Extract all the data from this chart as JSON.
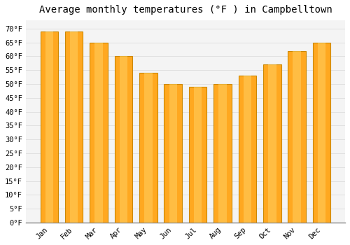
{
  "title": "Average monthly temperatures (°F ) in Campbelltown",
  "months": [
    "Jan",
    "Feb",
    "Mar",
    "Apr",
    "May",
    "Jun",
    "Jul",
    "Aug",
    "Sep",
    "Oct",
    "Nov",
    "Dec"
  ],
  "values": [
    69,
    69,
    65,
    60,
    54,
    50,
    49,
    50,
    53,
    57,
    62,
    65
  ],
  "bar_color": "#FFA820",
  "bar_edge_color": "#CC8800",
  "background_color": "#ffffff",
  "plot_bg_color": "#f4f4f4",
  "grid_color": "#dddddd",
  "ylim": [
    0,
    73
  ],
  "yticks": [
    0,
    5,
    10,
    15,
    20,
    25,
    30,
    35,
    40,
    45,
    50,
    55,
    60,
    65,
    70
  ],
  "title_fontsize": 10,
  "tick_fontsize": 7.5,
  "tick_font": "monospace"
}
